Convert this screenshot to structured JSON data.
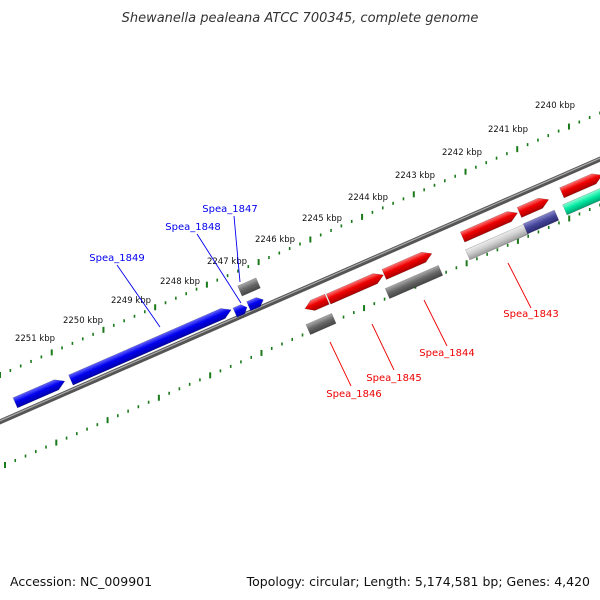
{
  "title": "Shewanella pealeana ATCC 700345, complete genome",
  "footer": {
    "accession": "Accession: NC_009901",
    "summary": "Topology: circular; Length: 5,174,581 bp; Genes: 4,420"
  },
  "colors": {
    "blue": "#0000ee",
    "red": "#ee0000",
    "gray": "#666666",
    "light_gray": "#cccccc",
    "slate": "#444499",
    "teal": "#00e8a0",
    "tick_green": "#1a7a1a",
    "backbone": "#777777"
  },
  "scale_labels": [
    {
      "text": "2240 kbp"
    },
    {
      "text": "2241 kbp"
    },
    {
      "text": "2242 kbp"
    },
    {
      "text": "2243 kbp"
    },
    {
      "text": "2244 kbp"
    },
    {
      "text": "2245 kbp"
    },
    {
      "text": "2246 kbp"
    },
    {
      "text": "2247 kbp"
    },
    {
      "text": "2248 kbp"
    },
    {
      "text": "2249 kbp"
    },
    {
      "text": "2250 kbp"
    },
    {
      "text": "2251 kbp"
    }
  ],
  "gene_labels": [
    {
      "text": "Spea_1849",
      "strand": "forward"
    },
    {
      "text": "Spea_1848",
      "strand": "forward"
    },
    {
      "text": "Spea_1847",
      "strand": "forward"
    },
    {
      "text": "Spea_1843",
      "strand": "reverse"
    },
    {
      "text": "Spea_1844",
      "strand": "reverse"
    },
    {
      "text": "Spea_1845",
      "strand": "reverse"
    },
    {
      "text": "Spea_1846",
      "strand": "reverse"
    }
  ]
}
